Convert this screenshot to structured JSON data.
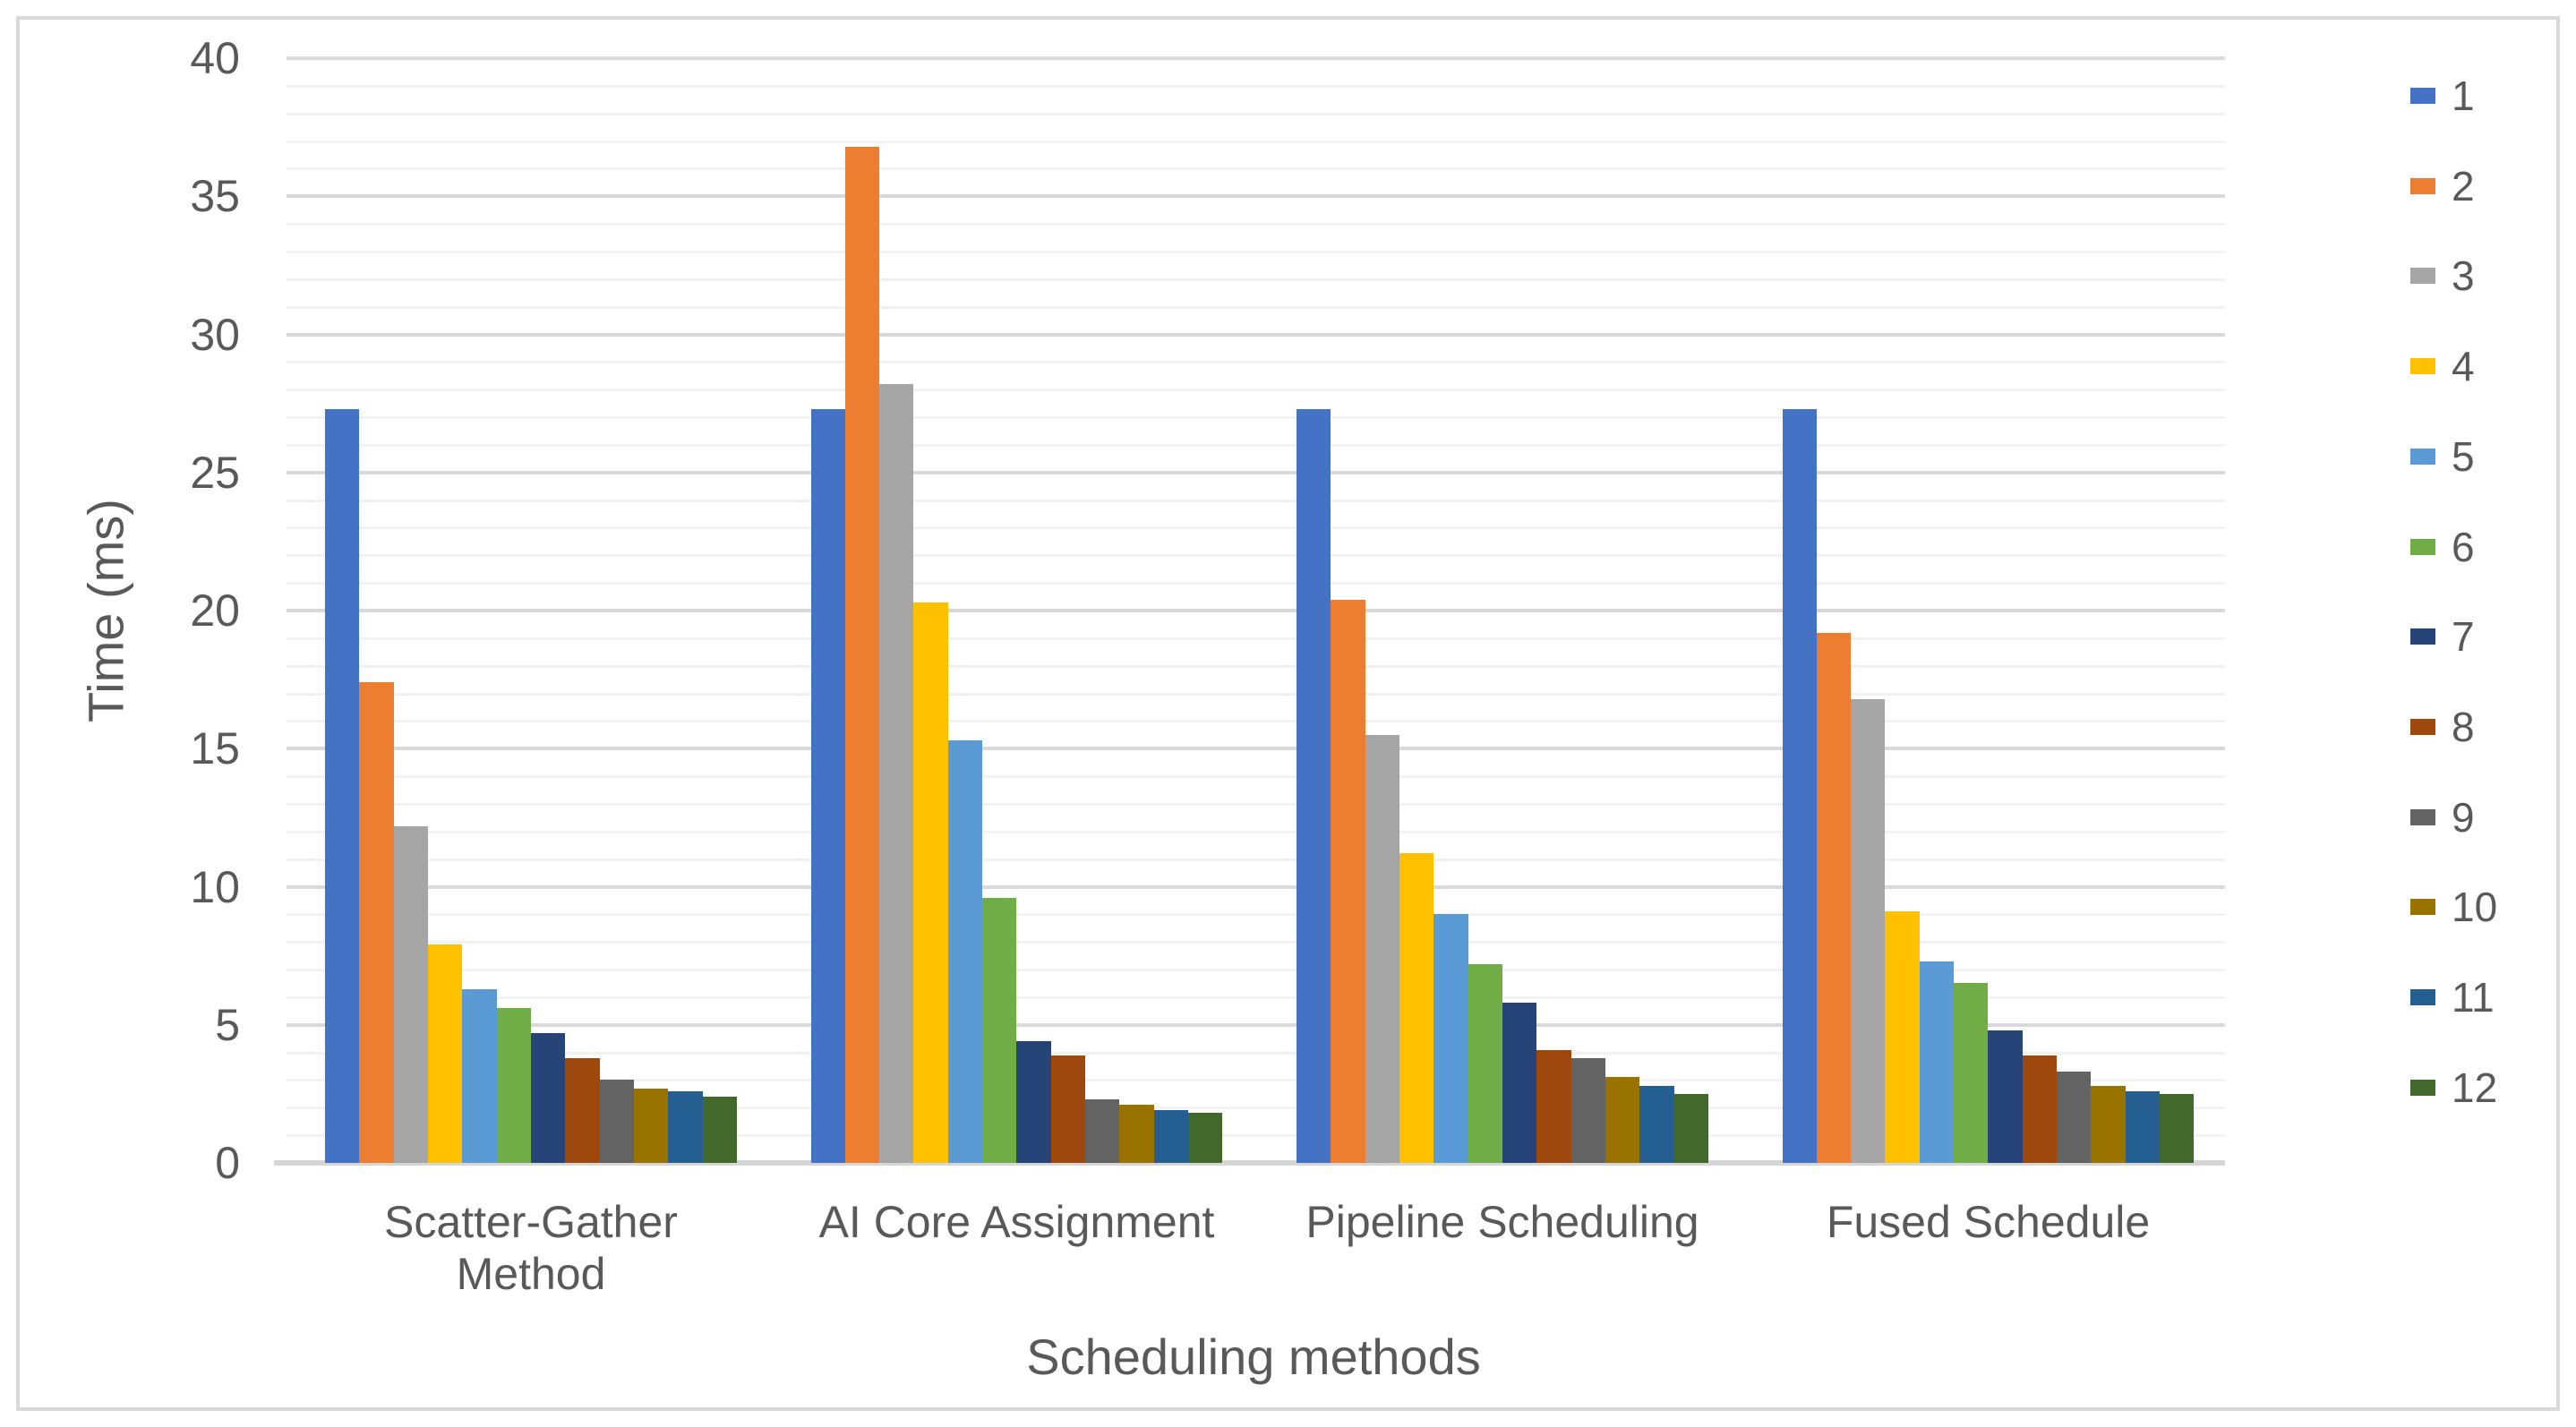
{
  "chart_data": {
    "type": "bar",
    "title": "",
    "xlabel": "Scheduling methods",
    "ylabel": "Time (ms)",
    "ylim": [
      0,
      40
    ],
    "y_major_step": 5,
    "y_minor_step": 1,
    "y_tick_labels": [
      "0",
      "5",
      "10",
      "15",
      "20",
      "25",
      "30",
      "35",
      "40"
    ],
    "grid": "major and minor horizontal gridlines",
    "legend_position": "right",
    "categories": [
      "Scatter-Gather Method",
      "AI Core Assignment",
      "Pipeline Scheduling",
      "Fused Schedule"
    ],
    "series": [
      {
        "name": "1",
        "color": "#4472C4",
        "values": [
          27.3,
          27.3,
          27.3,
          27.3
        ]
      },
      {
        "name": "2",
        "color": "#ED7D31",
        "values": [
          17.4,
          36.8,
          20.4,
          19.2
        ]
      },
      {
        "name": "3",
        "color": "#A5A5A5",
        "values": [
          12.2,
          28.2,
          15.5,
          16.8
        ]
      },
      {
        "name": "4",
        "color": "#FFC000",
        "values": [
          7.9,
          20.3,
          11.2,
          9.1
        ]
      },
      {
        "name": "5",
        "color": "#5B9BD5",
        "values": [
          6.3,
          15.3,
          9.0,
          7.3
        ]
      },
      {
        "name": "6",
        "color": "#70AD47",
        "values": [
          5.6,
          9.6,
          7.2,
          6.5
        ]
      },
      {
        "name": "7",
        "color": "#264478",
        "values": [
          4.7,
          4.4,
          5.8,
          4.8
        ]
      },
      {
        "name": "8",
        "color": "#9E480E",
        "values": [
          3.8,
          3.9,
          4.1,
          3.9
        ]
      },
      {
        "name": "9",
        "color": "#636363",
        "values": [
          3.0,
          2.3,
          3.8,
          3.3
        ]
      },
      {
        "name": "10",
        "color": "#997300",
        "values": [
          2.7,
          2.1,
          3.1,
          2.8
        ]
      },
      {
        "name": "11",
        "color": "#255E91",
        "values": [
          2.6,
          1.9,
          2.8,
          2.6
        ]
      },
      {
        "name": "12",
        "color": "#43682B",
        "values": [
          2.4,
          1.8,
          2.5,
          2.5
        ]
      }
    ]
  },
  "colors": {
    "background": "#FFFFFF",
    "text": "#595959",
    "major_grid": "#D9D9D9",
    "minor_grid": "#F2F2F2",
    "axis_line": "#D6D6D6",
    "frame_border": "#D9D9D9"
  }
}
